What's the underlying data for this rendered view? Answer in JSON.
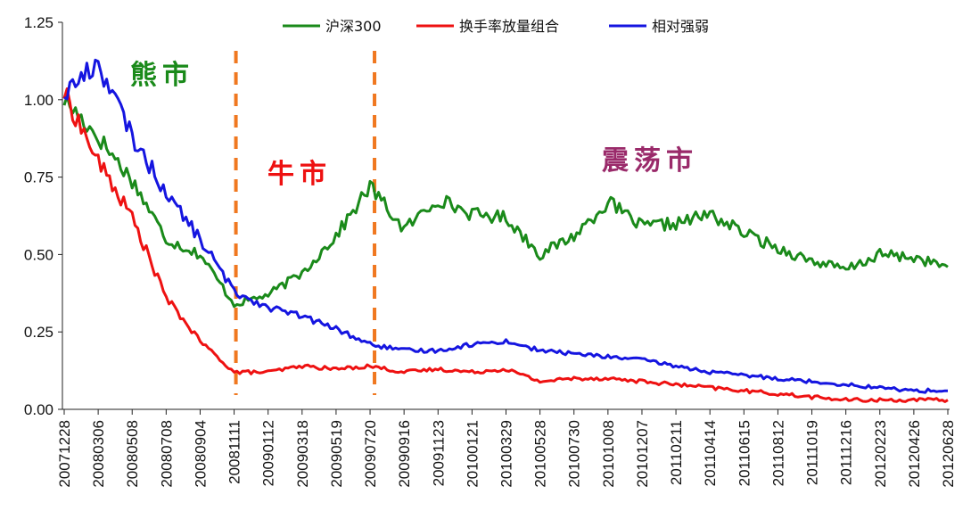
{
  "chart_data": {
    "type": "line",
    "title": "",
    "xlabel": "",
    "ylabel": "",
    "ylim": [
      0,
      1.25
    ],
    "yticks": [
      "0.00",
      "0.25",
      "0.50",
      "0.75",
      "1.00",
      "1.25"
    ],
    "ytick_values": [
      0,
      0.25,
      0.5,
      0.75,
      1.0,
      1.25
    ],
    "categories": [
      "20071228",
      "20080306",
      "20080508",
      "20080708",
      "20080904",
      "20081111",
      "20090112",
      "20090318",
      "20090519",
      "20090720",
      "20090916",
      "20091123",
      "20100121",
      "20100329",
      "20100528",
      "20100730",
      "20101008",
      "20101207",
      "20110211",
      "20110414",
      "20110615",
      "20110812",
      "20111019",
      "20111216",
      "20120223",
      "20120426",
      "20120628"
    ],
    "legend_position": "top",
    "series": [
      {
        "name": "沪深300",
        "color": "#1a8a1a",
        "values": [
          1.0,
          0.88,
          0.74,
          0.55,
          0.5,
          0.34,
          0.37,
          0.44,
          0.56,
          0.72,
          0.58,
          0.68,
          0.63,
          0.62,
          0.5,
          0.56,
          0.67,
          0.59,
          0.6,
          0.63,
          0.57,
          0.52,
          0.48,
          0.45,
          0.5,
          0.49,
          0.46
        ]
      },
      {
        "name": "换手率放量组合",
        "color": "#ee1111",
        "values": [
          1.02,
          0.8,
          0.62,
          0.36,
          0.22,
          0.12,
          0.12,
          0.14,
          0.13,
          0.14,
          0.12,
          0.13,
          0.12,
          0.13,
          0.09,
          0.1,
          0.1,
          0.09,
          0.08,
          0.07,
          0.06,
          0.05,
          0.04,
          0.03,
          0.03,
          0.03,
          0.03
        ]
      },
      {
        "name": "相对强弱",
        "color": "#1515e0",
        "values": [
          1.02,
          1.12,
          0.88,
          0.7,
          0.55,
          0.38,
          0.33,
          0.3,
          0.26,
          0.21,
          0.19,
          0.19,
          0.21,
          0.22,
          0.19,
          0.18,
          0.17,
          0.16,
          0.14,
          0.12,
          0.11,
          0.1,
          0.09,
          0.08,
          0.07,
          0.06,
          0.06
        ]
      }
    ],
    "dividers_at": [
      "20081111",
      "20090720"
    ],
    "divider_color": "#f07820",
    "annotations": [
      {
        "text": "熊市",
        "color": "#1a8a1a"
      },
      {
        "text": "牛市",
        "color": "#ee1111"
      },
      {
        "text": "震荡市",
        "color": "#9a2a6a"
      }
    ]
  }
}
